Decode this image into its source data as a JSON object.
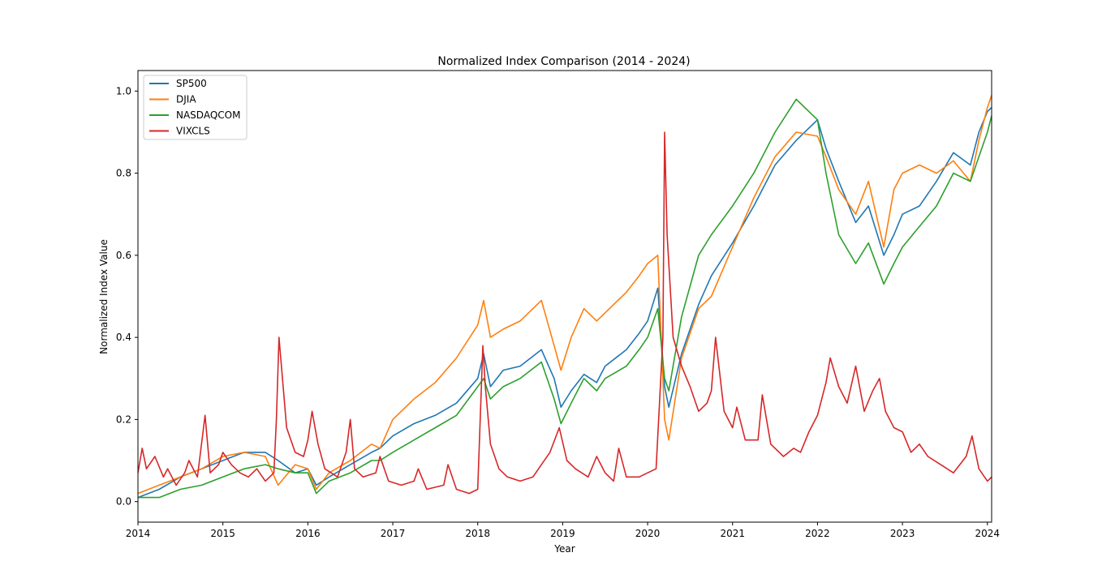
{
  "chart_data": {
    "type": "line",
    "title": "Normalized Index Comparison (2014 - 2024)",
    "xlabel": "Year",
    "ylabel": "Normalized Index Value",
    "xlim": [
      2014.0,
      2024.05
    ],
    "ylim": [
      -0.05,
      1.05
    ],
    "xticks": [
      2014,
      2015,
      2016,
      2017,
      2018,
      2019,
      2020,
      2021,
      2022,
      2023,
      2024
    ],
    "xtick_labels": [
      "2014",
      "2015",
      "2016",
      "2017",
      "2018",
      "2019",
      "2020",
      "2021",
      "2022",
      "2023",
      "2024"
    ],
    "yticks": [
      0.0,
      0.2,
      0.4,
      0.6,
      0.8,
      1.0
    ],
    "ytick_labels": [
      "0.0",
      "0.2",
      "0.4",
      "0.6",
      "0.8",
      "1.0"
    ],
    "grid": false,
    "legend_position": "upper-left",
    "series": [
      {
        "name": "SP500",
        "color": "#1f77b4",
        "x": [
          2014.0,
          2014.25,
          2014.5,
          2014.75,
          2015.0,
          2015.25,
          2015.5,
          2015.65,
          2015.85,
          2016.0,
          2016.1,
          2016.25,
          2016.5,
          2016.75,
          2016.85,
          2017.0,
          2017.25,
          2017.5,
          2017.75,
          2018.0,
          2018.07,
          2018.15,
          2018.3,
          2018.5,
          2018.75,
          2018.9,
          2018.98,
          2019.1,
          2019.25,
          2019.4,
          2019.5,
          2019.75,
          2019.9,
          2020.0,
          2020.12,
          2020.2,
          2020.25,
          2020.4,
          2020.6,
          2020.75,
          2021.0,
          2021.25,
          2021.5,
          2021.75,
          2022.0,
          2022.1,
          2022.25,
          2022.45,
          2022.6,
          2022.78,
          2022.9,
          2023.0,
          2023.2,
          2023.4,
          2023.6,
          2023.8,
          2023.9,
          2024.0,
          2024.05
        ],
        "y": [
          0.01,
          0.03,
          0.06,
          0.08,
          0.1,
          0.12,
          0.12,
          0.1,
          0.07,
          0.08,
          0.04,
          0.06,
          0.09,
          0.12,
          0.13,
          0.16,
          0.19,
          0.21,
          0.24,
          0.3,
          0.36,
          0.28,
          0.32,
          0.33,
          0.37,
          0.3,
          0.23,
          0.27,
          0.31,
          0.29,
          0.33,
          0.37,
          0.41,
          0.44,
          0.52,
          0.28,
          0.23,
          0.36,
          0.48,
          0.55,
          0.63,
          0.72,
          0.82,
          0.88,
          0.93,
          0.86,
          0.78,
          0.68,
          0.72,
          0.6,
          0.65,
          0.7,
          0.72,
          0.78,
          0.85,
          0.82,
          0.9,
          0.95,
          0.96
        ]
      },
      {
        "name": "DJIA",
        "color": "#ff7f0e",
        "x": [
          2014.0,
          2014.25,
          2014.5,
          2014.75,
          2015.0,
          2015.25,
          2015.5,
          2015.65,
          2015.85,
          2016.0,
          2016.1,
          2016.25,
          2016.5,
          2016.75,
          2016.85,
          2017.0,
          2017.25,
          2017.5,
          2017.75,
          2018.0,
          2018.07,
          2018.15,
          2018.3,
          2018.5,
          2018.75,
          2018.9,
          2018.98,
          2019.1,
          2019.25,
          2019.4,
          2019.5,
          2019.75,
          2019.9,
          2020.0,
          2020.12,
          2020.2,
          2020.25,
          2020.4,
          2020.6,
          2020.75,
          2021.0,
          2021.25,
          2021.5,
          2021.75,
          2022.0,
          2022.1,
          2022.25,
          2022.45,
          2022.6,
          2022.78,
          2022.9,
          2023.0,
          2023.2,
          2023.4,
          2023.6,
          2023.8,
          2023.9,
          2024.0,
          2024.05
        ],
        "y": [
          0.02,
          0.04,
          0.06,
          0.08,
          0.11,
          0.12,
          0.11,
          0.04,
          0.09,
          0.08,
          0.03,
          0.07,
          0.1,
          0.14,
          0.13,
          0.2,
          0.25,
          0.29,
          0.35,
          0.43,
          0.49,
          0.4,
          0.42,
          0.44,
          0.49,
          0.38,
          0.32,
          0.4,
          0.47,
          0.44,
          0.46,
          0.51,
          0.55,
          0.58,
          0.6,
          0.2,
          0.15,
          0.35,
          0.47,
          0.5,
          0.62,
          0.74,
          0.84,
          0.9,
          0.89,
          0.84,
          0.76,
          0.7,
          0.78,
          0.62,
          0.76,
          0.8,
          0.82,
          0.8,
          0.83,
          0.78,
          0.88,
          0.96,
          0.99
        ]
      },
      {
        "name": "NASDAQCOM",
        "color": "#2ca02c",
        "x": [
          2014.0,
          2014.25,
          2014.5,
          2014.75,
          2015.0,
          2015.25,
          2015.5,
          2015.65,
          2015.85,
          2016.0,
          2016.1,
          2016.25,
          2016.5,
          2016.75,
          2016.85,
          2017.0,
          2017.25,
          2017.5,
          2017.75,
          2018.0,
          2018.07,
          2018.15,
          2018.3,
          2018.5,
          2018.75,
          2018.9,
          2018.98,
          2019.1,
          2019.25,
          2019.4,
          2019.5,
          2019.75,
          2019.9,
          2020.0,
          2020.12,
          2020.2,
          2020.25,
          2020.4,
          2020.6,
          2020.75,
          2021.0,
          2021.25,
          2021.5,
          2021.75,
          2022.0,
          2022.1,
          2022.25,
          2022.45,
          2022.6,
          2022.78,
          2022.9,
          2023.0,
          2023.2,
          2023.4,
          2023.6,
          2023.8,
          2023.9,
          2024.0,
          2024.05
        ],
        "y": [
          0.01,
          0.01,
          0.03,
          0.04,
          0.06,
          0.08,
          0.09,
          0.08,
          0.07,
          0.07,
          0.02,
          0.05,
          0.07,
          0.1,
          0.1,
          0.12,
          0.15,
          0.18,
          0.21,
          0.28,
          0.3,
          0.25,
          0.28,
          0.3,
          0.34,
          0.25,
          0.19,
          0.24,
          0.3,
          0.27,
          0.3,
          0.33,
          0.37,
          0.4,
          0.47,
          0.3,
          0.27,
          0.45,
          0.6,
          0.65,
          0.72,
          0.8,
          0.9,
          0.98,
          0.93,
          0.8,
          0.65,
          0.58,
          0.63,
          0.53,
          0.58,
          0.62,
          0.67,
          0.72,
          0.8,
          0.78,
          0.84,
          0.9,
          0.94
        ]
      },
      {
        "name": "VIXCLS",
        "color": "#d62728",
        "x": [
          2014.0,
          2014.05,
          2014.1,
          2014.2,
          2014.3,
          2014.35,
          2014.45,
          2014.55,
          2014.6,
          2014.7,
          2014.79,
          2014.85,
          2014.95,
          2015.0,
          2015.1,
          2015.2,
          2015.3,
          2015.4,
          2015.5,
          2015.6,
          2015.63,
          2015.66,
          2015.75,
          2015.85,
          2015.95,
          2016.0,
          2016.05,
          2016.12,
          2016.2,
          2016.35,
          2016.45,
          2016.5,
          2016.55,
          2016.65,
          2016.8,
          2016.85,
          2016.95,
          2017.1,
          2017.25,
          2017.3,
          2017.4,
          2017.6,
          2017.65,
          2017.75,
          2017.9,
          2018.0,
          2018.06,
          2018.09,
          2018.15,
          2018.25,
          2018.35,
          2018.5,
          2018.65,
          2018.75,
          2018.85,
          2018.96,
          2019.05,
          2019.15,
          2019.3,
          2019.4,
          2019.5,
          2019.6,
          2019.66,
          2019.75,
          2019.9,
          2020.0,
          2020.1,
          2020.18,
          2020.2,
          2020.23,
          2020.3,
          2020.4,
          2020.5,
          2020.6,
          2020.7,
          2020.75,
          2020.8,
          2020.9,
          2021.0,
          2021.05,
          2021.15,
          2021.3,
          2021.35,
          2021.45,
          2021.6,
          2021.72,
          2021.8,
          2021.9,
          2022.0,
          2022.1,
          2022.15,
          2022.25,
          2022.35,
          2022.45,
          2022.55,
          2022.65,
          2022.73,
          2022.8,
          2022.9,
          2023.0,
          2023.1,
          2023.2,
          2023.3,
          2023.45,
          2023.6,
          2023.75,
          2023.82,
          2023.9,
          2024.0,
          2024.05
        ],
        "y": [
          0.07,
          0.13,
          0.08,
          0.11,
          0.06,
          0.08,
          0.04,
          0.07,
          0.1,
          0.06,
          0.21,
          0.07,
          0.09,
          0.12,
          0.09,
          0.07,
          0.06,
          0.08,
          0.05,
          0.07,
          0.2,
          0.4,
          0.18,
          0.12,
          0.11,
          0.15,
          0.22,
          0.14,
          0.08,
          0.06,
          0.12,
          0.2,
          0.08,
          0.06,
          0.07,
          0.11,
          0.05,
          0.04,
          0.05,
          0.08,
          0.03,
          0.04,
          0.09,
          0.03,
          0.02,
          0.03,
          0.38,
          0.28,
          0.14,
          0.08,
          0.06,
          0.05,
          0.06,
          0.09,
          0.12,
          0.18,
          0.1,
          0.08,
          0.06,
          0.11,
          0.07,
          0.05,
          0.13,
          0.06,
          0.06,
          0.07,
          0.08,
          0.4,
          0.9,
          0.65,
          0.4,
          0.33,
          0.28,
          0.22,
          0.24,
          0.27,
          0.4,
          0.22,
          0.18,
          0.23,
          0.15,
          0.15,
          0.26,
          0.14,
          0.11,
          0.13,
          0.12,
          0.17,
          0.21,
          0.29,
          0.35,
          0.28,
          0.24,
          0.33,
          0.22,
          0.27,
          0.3,
          0.22,
          0.18,
          0.17,
          0.12,
          0.14,
          0.11,
          0.09,
          0.07,
          0.11,
          0.16,
          0.08,
          0.05,
          0.06
        ]
      }
    ]
  }
}
